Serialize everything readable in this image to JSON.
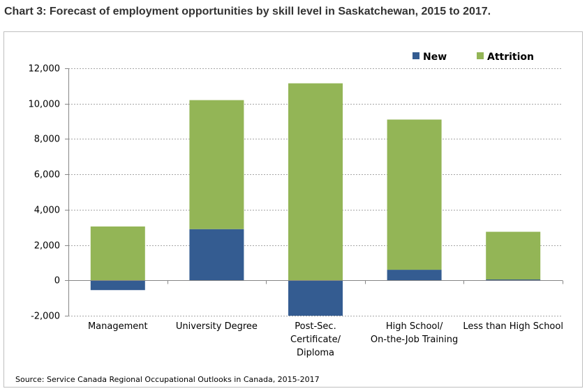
{
  "chart_title": "Chart 3: Forecast of employment opportunities by skill level in Saskatchewan, 2015 to 2017.",
  "source_note": "Source: Service Canada Regional Occupational Outlooks in Canada, 2015-2017",
  "chart_data": {
    "type": "bar",
    "stacked": true,
    "categories": [
      [
        "Management"
      ],
      [
        "University Degree"
      ],
      [
        "Post-Sec.",
        "Certificate/",
        "Diploma"
      ],
      [
        "High School/",
        "On-the-Job Training"
      ],
      [
        "Less than High School"
      ]
    ],
    "series": [
      {
        "name": "New",
        "color": "#345c91",
        "values": [
          -550,
          2900,
          -2000,
          600,
          50
        ]
      },
      {
        "name": "Attrition",
        "color": "#93b556",
        "values": [
          3050,
          7300,
          11150,
          8500,
          2700
        ]
      }
    ],
    "ylim": [
      -2000,
      12000
    ],
    "yticks": [
      -2000,
      0,
      2000,
      4000,
      6000,
      8000,
      10000,
      12000
    ],
    "grid": true,
    "legend_position": "top-right"
  }
}
